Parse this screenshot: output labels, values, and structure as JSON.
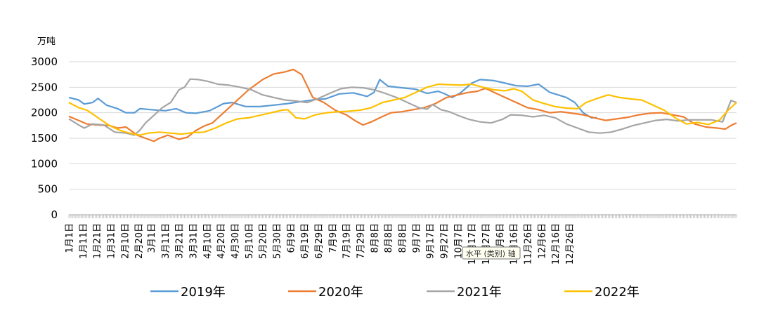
{
  "chart_data": {
    "type": "line",
    "title": "",
    "ylabel": "万吨",
    "xlabel": "",
    "ylim": [
      0,
      3000
    ],
    "yticks": [
      0,
      500,
      1000,
      1500,
      2000,
      2500,
      3000
    ],
    "grid": true,
    "legend_position": "bottom",
    "tooltip": "水平 (类别) 轴",
    "x_ticks": [
      "1月1日",
      "1月11日",
      "1月21日",
      "1月31日",
      "2月10日",
      "2月20日",
      "3月1日",
      "3月11日",
      "3月21日",
      "3月31日",
      "4月10日",
      "4月20日",
      "4月30日",
      "5月10日",
      "5月20日",
      "5月30日",
      "6月9日",
      "6月19日",
      "6月29日",
      "7月9日",
      "7月19日",
      "7月29日",
      "8月8日",
      "8月8日",
      "8月8日",
      "9月7日",
      "9月17日",
      "9月27日",
      "10月7日",
      "10月17日",
      "10月27日",
      "11月6日",
      "11月16日",
      "11月26日",
      "12月6日",
      "12月16日",
      "12月26日"
    ],
    "x_days": [
      1,
      11,
      21,
      31,
      41,
      51,
      60,
      70,
      80,
      90,
      100,
      110,
      120,
      130,
      140,
      150,
      160,
      170,
      180,
      190,
      200,
      210,
      220,
      230,
      240,
      250,
      260,
      270,
      280,
      290,
      300,
      310,
      320,
      330,
      340,
      350,
      360
    ],
    "series": [
      {
        "name": "2019年",
        "color": "#5B9BD5",
        "points": [
          [
            1,
            2300
          ],
          [
            8,
            2250
          ],
          [
            12,
            2170
          ],
          [
            18,
            2200
          ],
          [
            22,
            2280
          ],
          [
            28,
            2150
          ],
          [
            36,
            2080
          ],
          [
            42,
            2000
          ],
          [
            48,
            2000
          ],
          [
            52,
            2080
          ],
          [
            60,
            2060
          ],
          [
            70,
            2040
          ],
          [
            78,
            2080
          ],
          [
            85,
            2000
          ],
          [
            92,
            1990
          ],
          [
            102,
            2040
          ],
          [
            112,
            2180
          ],
          [
            118,
            2200
          ],
          [
            128,
            2120
          ],
          [
            138,
            2120
          ],
          [
            148,
            2150
          ],
          [
            158,
            2180
          ],
          [
            168,
            2220
          ],
          [
            178,
            2260
          ],
          [
            185,
            2270
          ],
          [
            195,
            2370
          ],
          [
            205,
            2390
          ],
          [
            215,
            2320
          ],
          [
            220,
            2400
          ],
          [
            224,
            2650
          ],
          [
            230,
            2520
          ],
          [
            240,
            2490
          ],
          [
            250,
            2460
          ],
          [
            258,
            2380
          ],
          [
            266,
            2420
          ],
          [
            270,
            2380
          ],
          [
            276,
            2300
          ],
          [
            282,
            2390
          ],
          [
            290,
            2580
          ],
          [
            296,
            2650
          ],
          [
            306,
            2630
          ],
          [
            314,
            2580
          ],
          [
            322,
            2530
          ],
          [
            330,
            2520
          ],
          [
            338,
            2560
          ],
          [
            346,
            2400
          ],
          [
            352,
            2350
          ],
          [
            358,
            2300
          ],
          [
            364,
            2200
          ],
          [
            370,
            2000
          ],
          [
            376,
            1900
          ],
          [
            380,
            1900
          ]
        ]
      },
      {
        "name": "2020年",
        "color": "#ED7D31",
        "points": [
          [
            1,
            1930
          ],
          [
            8,
            1850
          ],
          [
            14,
            1780
          ],
          [
            22,
            1760
          ],
          [
            30,
            1750
          ],
          [
            36,
            1700
          ],
          [
            42,
            1720
          ],
          [
            50,
            1560
          ],
          [
            58,
            1480
          ],
          [
            62,
            1440
          ],
          [
            66,
            1500
          ],
          [
            72,
            1560
          ],
          [
            80,
            1480
          ],
          [
            86,
            1520
          ],
          [
            92,
            1650
          ],
          [
            98,
            1740
          ],
          [
            104,
            1800
          ],
          [
            112,
            2000
          ],
          [
            120,
            2200
          ],
          [
            130,
            2450
          ],
          [
            140,
            2650
          ],
          [
            148,
            2760
          ],
          [
            156,
            2800
          ],
          [
            162,
            2850
          ],
          [
            168,
            2750
          ],
          [
            176,
            2300
          ],
          [
            184,
            2200
          ],
          [
            192,
            2050
          ],
          [
            200,
            1960
          ],
          [
            206,
            1850
          ],
          [
            212,
            1760
          ],
          [
            218,
            1820
          ],
          [
            224,
            1900
          ],
          [
            232,
            2000
          ],
          [
            240,
            2020
          ],
          [
            248,
            2060
          ],
          [
            256,
            2100
          ],
          [
            264,
            2180
          ],
          [
            272,
            2300
          ],
          [
            280,
            2350
          ],
          [
            288,
            2400
          ],
          [
            294,
            2420
          ],
          [
            300,
            2480
          ],
          [
            306,
            2400
          ],
          [
            314,
            2300
          ],
          [
            322,
            2200
          ],
          [
            330,
            2100
          ],
          [
            338,
            2060
          ],
          [
            346,
            2000
          ],
          [
            354,
            2020
          ],
          [
            362,
            1990
          ],
          [
            370,
            1960
          ],
          [
            378,
            1900
          ],
          [
            386,
            1850
          ],
          [
            394,
            1880
          ],
          [
            402,
            1910
          ],
          [
            410,
            1960
          ],
          [
            418,
            1990
          ],
          [
            426,
            2000
          ],
          [
            434,
            1960
          ],
          [
            442,
            1920
          ],
          [
            450,
            1780
          ],
          [
            458,
            1720
          ],
          [
            466,
            1700
          ],
          [
            472,
            1680
          ],
          [
            476,
            1750
          ],
          [
            480,
            1800
          ]
        ]
      },
      {
        "name": "2021年",
        "color": "#A5A5A5",
        "points": [
          [
            1,
            1880
          ],
          [
            8,
            1760
          ],
          [
            12,
            1700
          ],
          [
            18,
            1780
          ],
          [
            26,
            1760
          ],
          [
            34,
            1620
          ],
          [
            42,
            1600
          ],
          [
            48,
            1560
          ],
          [
            52,
            1660
          ],
          [
            56,
            1800
          ],
          [
            62,
            1950
          ],
          [
            68,
            2100
          ],
          [
            74,
            2200
          ],
          [
            80,
            2450
          ],
          [
            84,
            2500
          ],
          [
            88,
            2660
          ],
          [
            94,
            2650
          ],
          [
            100,
            2620
          ],
          [
            108,
            2560
          ],
          [
            116,
            2540
          ],
          [
            124,
            2500
          ],
          [
            132,
            2450
          ],
          [
            140,
            2350
          ],
          [
            148,
            2300
          ],
          [
            156,
            2250
          ],
          [
            164,
            2230
          ],
          [
            172,
            2200
          ],
          [
            180,
            2280
          ],
          [
            188,
            2380
          ],
          [
            196,
            2470
          ],
          [
            204,
            2500
          ],
          [
            212,
            2490
          ],
          [
            220,
            2450
          ],
          [
            228,
            2380
          ],
          [
            236,
            2300
          ],
          [
            244,
            2200
          ],
          [
            252,
            2100
          ],
          [
            258,
            2070
          ],
          [
            262,
            2160
          ],
          [
            268,
            2060
          ],
          [
            274,
            2020
          ],
          [
            280,
            1950
          ],
          [
            288,
            1870
          ],
          [
            296,
            1820
          ],
          [
            304,
            1800
          ],
          [
            312,
            1870
          ],
          [
            318,
            1960
          ],
          [
            326,
            1950
          ],
          [
            334,
            1920
          ],
          [
            342,
            1950
          ],
          [
            350,
            1900
          ],
          [
            358,
            1780
          ],
          [
            366,
            1700
          ],
          [
            374,
            1620
          ],
          [
            382,
            1600
          ],
          [
            390,
            1620
          ],
          [
            398,
            1680
          ],
          [
            406,
            1750
          ],
          [
            414,
            1800
          ],
          [
            422,
            1850
          ],
          [
            430,
            1870
          ],
          [
            438,
            1840
          ],
          [
            446,
            1860
          ],
          [
            454,
            1860
          ],
          [
            462,
            1860
          ],
          [
            470,
            1820
          ],
          [
            476,
            2240
          ],
          [
            480,
            2200
          ]
        ]
      },
      {
        "name": "2022年",
        "color": "#FFC000",
        "points": [
          [
            1,
            2200
          ],
          [
            8,
            2100
          ],
          [
            14,
            2050
          ],
          [
            22,
            1900
          ],
          [
            30,
            1750
          ],
          [
            38,
            1650
          ],
          [
            46,
            1590
          ],
          [
            52,
            1560
          ],
          [
            58,
            1600
          ],
          [
            66,
            1620
          ],
          [
            74,
            1600
          ],
          [
            82,
            1580
          ],
          [
            90,
            1610
          ],
          [
            98,
            1620
          ],
          [
            106,
            1700
          ],
          [
            114,
            1800
          ],
          [
            122,
            1880
          ],
          [
            130,
            1900
          ],
          [
            138,
            1950
          ],
          [
            146,
            2000
          ],
          [
            154,
            2050
          ],
          [
            158,
            2060
          ],
          [
            164,
            1900
          ],
          [
            170,
            1880
          ],
          [
            178,
            1960
          ],
          [
            186,
            2000
          ],
          [
            194,
            2020
          ],
          [
            202,
            2030
          ],
          [
            210,
            2050
          ],
          [
            218,
            2100
          ],
          [
            226,
            2200
          ],
          [
            234,
            2250
          ],
          [
            242,
            2300
          ],
          [
            250,
            2400
          ],
          [
            258,
            2500
          ],
          [
            266,
            2560
          ],
          [
            274,
            2550
          ],
          [
            282,
            2540
          ],
          [
            290,
            2560
          ],
          [
            298,
            2500
          ],
          [
            306,
            2450
          ],
          [
            314,
            2430
          ],
          [
            320,
            2470
          ],
          [
            326,
            2420
          ],
          [
            334,
            2250
          ],
          [
            342,
            2180
          ],
          [
            350,
            2120
          ],
          [
            358,
            2090
          ],
          [
            366,
            2080
          ],
          [
            372,
            2200
          ],
          [
            380,
            2280
          ],
          [
            388,
            2350
          ],
          [
            396,
            2300
          ],
          [
            404,
            2270
          ],
          [
            412,
            2250
          ],
          [
            420,
            2150
          ],
          [
            428,
            2050
          ],
          [
            436,
            1900
          ],
          [
            444,
            1780
          ],
          [
            452,
            1810
          ],
          [
            460,
            1770
          ],
          [
            468,
            1860
          ],
          [
            474,
            2050
          ],
          [
            480,
            2200
          ]
        ]
      }
    ]
  }
}
